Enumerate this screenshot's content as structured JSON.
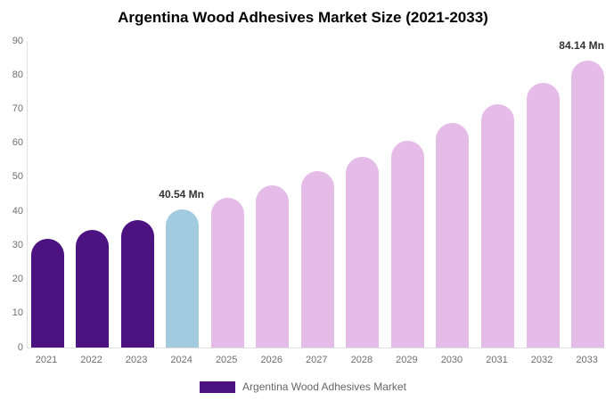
{
  "title": "Argentina Wood Adhesives Market Size (2021-2033)",
  "colors": {
    "historical_bar": "#4B1280",
    "base_year_bar": "#A3CBE0",
    "forecast_bar": "#E5BBE7",
    "axis_line": "#e0e0e0",
    "tick_text": "#6e6e6e",
    "annotation_text": "#333333",
    "title_text": "#000000",
    "legend_text": "#666666"
  },
  "chart_data": {
    "type": "bar",
    "title": "Argentina Wood Adhesives Market Size (2021-2033)",
    "xlabel": "",
    "ylabel": "",
    "unit": "Mn",
    "categories": [
      "2021",
      "2022",
      "2023",
      "2024",
      "2025",
      "2026",
      "2027",
      "2028",
      "2029",
      "2030",
      "2031",
      "2032",
      "2033"
    ],
    "values": [
      31.8,
      34.6,
      37.5,
      40.54,
      43.97,
      47.68,
      51.71,
      56.08,
      60.82,
      65.96,
      71.53,
      77.58,
      84.14
    ],
    "bar_colors": [
      "#4B1280",
      "#4B1280",
      "#4B1280",
      "#A3CBE0",
      "#E5BBE7",
      "#E5BBE7",
      "#E5BBE7",
      "#E5BBE7",
      "#E5BBE7",
      "#E5BBE7",
      "#E5BBE7",
      "#E5BBE7",
      "#E5BBE7"
    ],
    "data_labels": [
      {
        "category": "2024",
        "text": "40.54 Mn"
      },
      {
        "category": "2033",
        "text": "84.14 Mn"
      }
    ],
    "ylim": [
      0,
      90
    ],
    "yticks": [
      0,
      10,
      20,
      30,
      40,
      50,
      60,
      70,
      80,
      90
    ],
    "grid": false,
    "legend_position": "bottom"
  },
  "legend": {
    "entries": [
      {
        "label": "Argentina Wood Adhesives Market",
        "color": "#4B1280"
      }
    ]
  }
}
